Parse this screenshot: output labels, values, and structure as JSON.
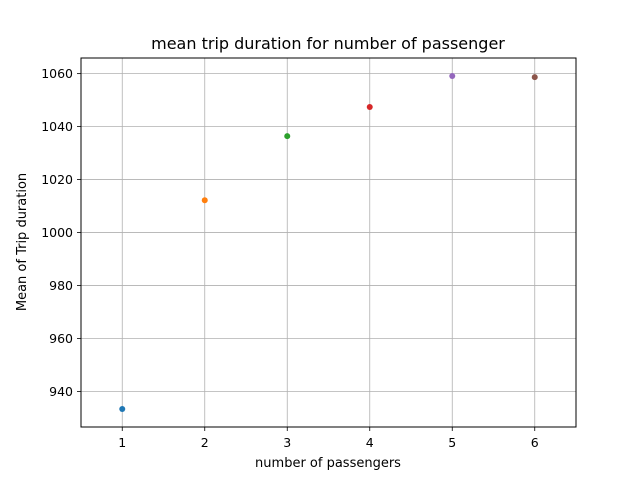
{
  "chart_data": {
    "type": "scatter",
    "title": "mean trip duration for number of passenger",
    "xlabel": "number of passengers",
    "ylabel": "Mean of Trip duration",
    "x": [
      1,
      2,
      3,
      4,
      5,
      6
    ],
    "y": [
      933.4,
      1012.2,
      1036.4,
      1047.4,
      1059.1,
      1058.7
    ],
    "point_colors": [
      "#1f77b4",
      "#ff7f0e",
      "#2ca02c",
      "#d62728",
      "#9467bd",
      "#8c564b"
    ],
    "xlim": [
      0.5,
      6.5
    ],
    "ylim": [
      926.6,
      1065.9
    ],
    "xticks": [
      1,
      2,
      3,
      4,
      5,
      6
    ],
    "yticks": [
      940,
      960,
      980,
      1000,
      1020,
      1040,
      1060
    ],
    "grid": true,
    "legend": "none",
    "grid_color": "#b0b0b0",
    "axis_color": "#000000"
  }
}
